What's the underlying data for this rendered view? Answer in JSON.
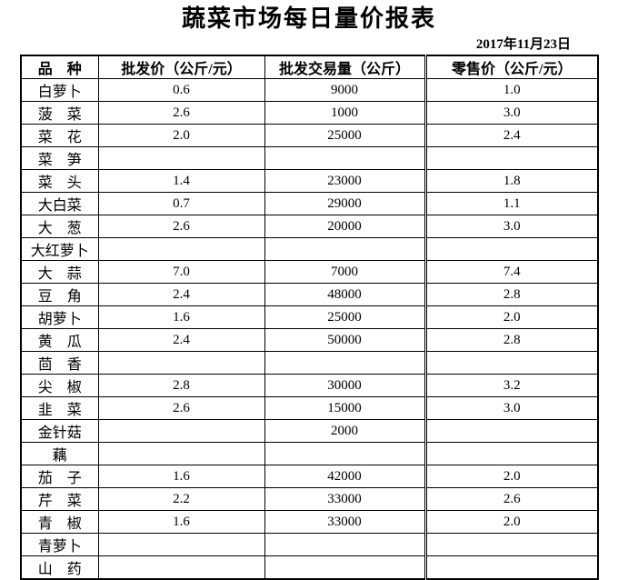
{
  "title": "蔬菜市场每日量价报表",
  "date": "2017年11月23日",
  "table": {
    "headers": [
      "品　种",
      "批发价（公斤/元）",
      "批发交易量（公斤）",
      "零售价（公斤/元）"
    ],
    "rows": [
      {
        "name": "白萝卜",
        "wholesale_price": "0.6",
        "volume": "9000",
        "retail_price": "1.0"
      },
      {
        "name": "菠　菜",
        "wholesale_price": "2.6",
        "volume": "1000",
        "retail_price": "3.0"
      },
      {
        "name": "菜　花",
        "wholesale_price": "2.0",
        "volume": "25000",
        "retail_price": "2.4"
      },
      {
        "name": "菜　笋",
        "wholesale_price": "",
        "volume": "",
        "retail_price": ""
      },
      {
        "name": "菜　头",
        "wholesale_price": "1.4",
        "volume": "23000",
        "retail_price": "1.8"
      },
      {
        "name": "大白菜",
        "wholesale_price": "0.7",
        "volume": "29000",
        "retail_price": "1.1"
      },
      {
        "name": "大　葱",
        "wholesale_price": "2.6",
        "volume": "20000",
        "retail_price": "3.0"
      },
      {
        "name": "大红萝卜",
        "wholesale_price": "",
        "volume": "",
        "retail_price": ""
      },
      {
        "name": "大　蒜",
        "wholesale_price": "7.0",
        "volume": "7000",
        "retail_price": "7.4"
      },
      {
        "name": "豆　角",
        "wholesale_price": "2.4",
        "volume": "48000",
        "retail_price": "2.8"
      },
      {
        "name": "胡萝卜",
        "wholesale_price": "1.6",
        "volume": "25000",
        "retail_price": "2.0"
      },
      {
        "name": "黄　瓜",
        "wholesale_price": "2.4",
        "volume": "50000",
        "retail_price": "2.8"
      },
      {
        "name": "茴　香",
        "wholesale_price": "",
        "volume": "",
        "retail_price": ""
      },
      {
        "name": "尖　椒",
        "wholesale_price": "2.8",
        "volume": "30000",
        "retail_price": "3.2"
      },
      {
        "name": "韭　菜",
        "wholesale_price": "2.6",
        "volume": "15000",
        "retail_price": "3.0"
      },
      {
        "name": "金针菇",
        "wholesale_price": "",
        "volume": "2000",
        "retail_price": ""
      },
      {
        "name": "藕",
        "wholesale_price": "",
        "volume": "",
        "retail_price": ""
      },
      {
        "name": "茄　子",
        "wholesale_price": "1.6",
        "volume": "42000",
        "retail_price": "2.0"
      },
      {
        "name": "芹　菜",
        "wholesale_price": "2.2",
        "volume": "33000",
        "retail_price": "2.6"
      },
      {
        "name": "青　椒",
        "wholesale_price": "1.6",
        "volume": "33000",
        "retail_price": "2.0"
      },
      {
        "name": "青萝卜",
        "wholesale_price": "",
        "volume": "",
        "retail_price": ""
      },
      {
        "name": "山　药",
        "wholesale_price": "",
        "volume": "",
        "retail_price": ""
      }
    ]
  }
}
